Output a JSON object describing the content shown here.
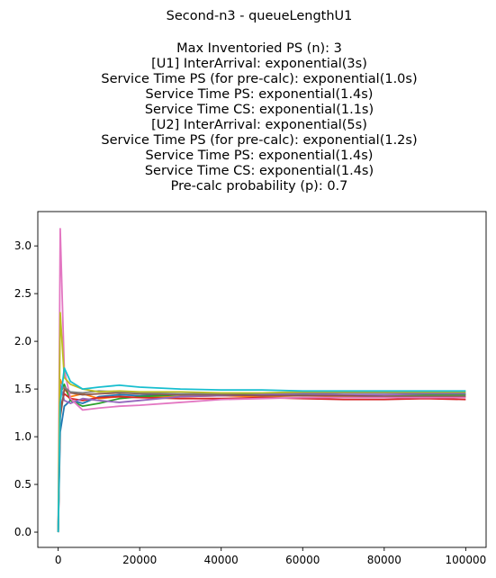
{
  "chart_data": {
    "type": "line",
    "title_lines": [
      "Second-n3 - queueLengthU1",
      "",
      "Max Inventoried PS (n): 3",
      "[U1] InterArrival: exponential(3s)",
      "Service Time PS (for pre-calc): exponential(1.0s)",
      "Service Time PS: exponential(1.4s)",
      "Service Time CS: exponential(1.1s)",
      "[U2] InterArrival: exponential(5s)",
      "Service Time PS (for pre-calc): exponential(1.2s)",
      "Service Time PS: exponential(1.4s)",
      "Service Time CS: exponential(1.4s)",
      "Pre-calc probability (p): 0.7"
    ],
    "xlabel": "",
    "ylabel": "",
    "xlim": [
      -5000,
      105000
    ],
    "ylim": [
      -0.16,
      3.36
    ],
    "xticks": [
      0,
      20000,
      40000,
      60000,
      80000,
      100000
    ],
    "xtick_labels": [
      "0",
      "20000",
      "40000",
      "60000",
      "80000",
      "100000"
    ],
    "yticks": [
      0.0,
      0.5,
      1.0,
      1.5,
      2.0,
      2.5,
      3.0
    ],
    "ytick_labels": [
      "0.0",
      "0.5",
      "1.0",
      "1.5",
      "2.0",
      "2.5",
      "3.0"
    ],
    "grid": false,
    "legend": "none",
    "series_colors": [
      "#1f77b4",
      "#ff7f0e",
      "#2ca02c",
      "#d62728",
      "#9467bd",
      "#8c564b",
      "#e377c2",
      "#7f7f7f",
      "#bcbd22",
      "#17becf"
    ],
    "series": [
      {
        "x": [
          0,
          500,
          1500,
          3000,
          6000,
          10000,
          15000,
          20000,
          30000,
          40000,
          50000,
          60000,
          70000,
          80000,
          90000,
          100000
        ],
        "y": [
          0.0,
          1.05,
          1.32,
          1.38,
          1.35,
          1.42,
          1.44,
          1.43,
          1.45,
          1.44,
          1.45,
          1.45,
          1.44,
          1.44,
          1.44,
          1.44
        ]
      },
      {
        "x": [
          0,
          500,
          1500,
          3000,
          6000,
          10000,
          15000,
          20000,
          30000,
          40000,
          50000,
          60000,
          70000,
          80000,
          90000,
          100000
        ],
        "y": [
          0.0,
          1.6,
          1.5,
          1.42,
          1.45,
          1.4,
          1.42,
          1.41,
          1.42,
          1.43,
          1.42,
          1.43,
          1.42,
          1.42,
          1.42,
          1.42
        ]
      },
      {
        "x": [
          0,
          500,
          1500,
          3000,
          6000,
          10000,
          15000,
          20000,
          30000,
          40000,
          50000,
          60000,
          70000,
          80000,
          90000,
          100000
        ],
        "y": [
          0.0,
          1.45,
          1.55,
          1.38,
          1.32,
          1.35,
          1.4,
          1.42,
          1.44,
          1.45,
          1.44,
          1.44,
          1.43,
          1.44,
          1.44,
          1.44
        ]
      },
      {
        "x": [
          0,
          500,
          1500,
          3000,
          6000,
          10000,
          15000,
          20000,
          30000,
          40000,
          50000,
          60000,
          70000,
          80000,
          90000,
          100000
        ],
        "y": [
          0.0,
          1.3,
          1.45,
          1.4,
          1.38,
          1.41,
          1.42,
          1.41,
          1.4,
          1.4,
          1.41,
          1.4,
          1.39,
          1.39,
          1.4,
          1.39
        ]
      },
      {
        "x": [
          0,
          500,
          1500,
          3000,
          6000,
          10000,
          15000,
          20000,
          30000,
          40000,
          50000,
          60000,
          70000,
          80000,
          90000,
          100000
        ],
        "y": [
          0.0,
          1.55,
          1.38,
          1.35,
          1.4,
          1.38,
          1.36,
          1.38,
          1.42,
          1.43,
          1.44,
          1.45,
          1.44,
          1.44,
          1.45,
          1.45
        ]
      },
      {
        "x": [
          0,
          500,
          1500,
          3000,
          6000,
          10000,
          15000,
          20000,
          30000,
          40000,
          50000,
          60000,
          70000,
          80000,
          90000,
          100000
        ],
        "y": [
          0.0,
          1.2,
          1.5,
          1.46,
          1.44,
          1.45,
          1.46,
          1.45,
          1.44,
          1.44,
          1.43,
          1.43,
          1.43,
          1.42,
          1.42,
          1.42
        ]
      },
      {
        "x": [
          0,
          500,
          1500,
          3000,
          6000,
          10000,
          15000,
          20000,
          30000,
          40000,
          50000,
          60000,
          70000,
          80000,
          90000,
          100000
        ],
        "y": [
          0.0,
          3.18,
          1.7,
          1.4,
          1.28,
          1.3,
          1.32,
          1.33,
          1.36,
          1.39,
          1.4,
          1.41,
          1.41,
          1.41,
          1.41,
          1.41
        ]
      },
      {
        "x": [
          0,
          500,
          1500,
          3000,
          6000,
          10000,
          15000,
          20000,
          30000,
          40000,
          50000,
          60000,
          70000,
          80000,
          90000,
          100000
        ],
        "y": [
          0.0,
          1.5,
          1.52,
          1.47,
          1.46,
          1.48,
          1.47,
          1.46,
          1.45,
          1.45,
          1.46,
          1.46,
          1.46,
          1.46,
          1.46,
          1.46
        ]
      },
      {
        "x": [
          0,
          500,
          1500,
          3000,
          6000,
          10000,
          15000,
          20000,
          30000,
          40000,
          50000,
          60000,
          70000,
          80000,
          90000,
          100000
        ],
        "y": [
          0.0,
          2.3,
          1.62,
          1.55,
          1.5,
          1.47,
          1.48,
          1.47,
          1.47,
          1.46,
          1.46,
          1.47,
          1.47,
          1.47,
          1.47,
          1.47
        ]
      },
      {
        "x": [
          0,
          500,
          1500,
          3000,
          6000,
          10000,
          15000,
          20000,
          30000,
          40000,
          50000,
          60000,
          70000,
          80000,
          90000,
          100000
        ],
        "y": [
          0.0,
          1.35,
          1.72,
          1.58,
          1.5,
          1.52,
          1.54,
          1.52,
          1.5,
          1.49,
          1.49,
          1.48,
          1.48,
          1.48,
          1.48,
          1.48
        ]
      }
    ]
  }
}
